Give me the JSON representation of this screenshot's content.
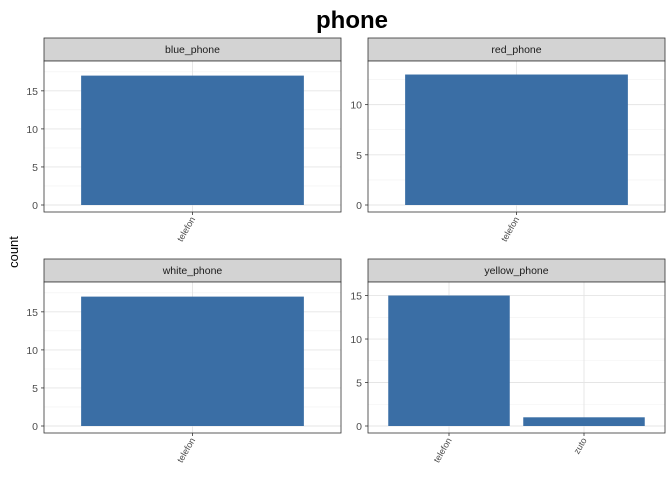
{
  "chart_data": {
    "type": "bar",
    "title": "phone",
    "ylabel": "count",
    "xlabel": "",
    "bar_color": "#3a6ea5",
    "strip_fill": "#d3d3d3",
    "grid": true,
    "panels": [
      {
        "name": "blue_phone",
        "categories": [
          "telefon"
        ],
        "values": [
          17
        ],
        "ylim": [
          0,
          18
        ],
        "yticks": [
          0,
          5,
          10,
          15
        ]
      },
      {
        "name": "red_phone",
        "categories": [
          "telefon"
        ],
        "values": [
          13
        ],
        "ylim": [
          0,
          13.65
        ],
        "yticks": [
          0,
          5,
          10
        ]
      },
      {
        "name": "white_phone",
        "categories": [
          "telefon"
        ],
        "values": [
          17
        ],
        "ylim": [
          0,
          18
        ],
        "yticks": [
          0,
          5,
          10,
          15
        ]
      },
      {
        "name": "yellow_phone",
        "categories": [
          "telefon",
          "zuto"
        ],
        "values": [
          15,
          1
        ],
        "ylim": [
          0,
          15.75
        ],
        "yticks": [
          0,
          5,
          10,
          15
        ]
      }
    ]
  }
}
